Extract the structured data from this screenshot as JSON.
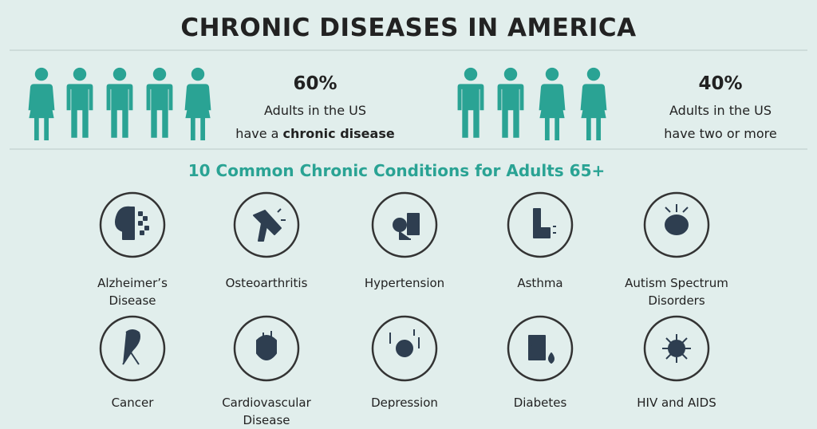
{
  "header": {
    "title": "CHRONIC DISEASES IN AMERICA"
  },
  "stats": [
    {
      "figure": "60%",
      "line1": "Adults in the US",
      "line2": "have a ",
      "line2_bold": "chronic disease"
    },
    {
      "figure": "40%",
      "line1": "Adults in the US",
      "line2": "have two or more"
    }
  ],
  "section": {
    "title": "10 Common Chronic Conditions for Adults 65+"
  },
  "conditions": [
    {
      "label": [
        "Alzheimer’s",
        "Disease"
      ]
    },
    {
      "label": [
        "Osteoarthritis"
      ]
    },
    {
      "label": [
        "Hypertension"
      ]
    },
    {
      "label": [
        "Asthma"
      ]
    },
    {
      "label": [
        "Autism Spectrum",
        "Disorders"
      ]
    },
    {
      "label": [
        "Cancer"
      ]
    },
    {
      "label": [
        "Cardiovascular",
        "Disease"
      ]
    },
    {
      "label": [
        "Depression"
      ]
    },
    {
      "label": [
        "Diabetes"
      ]
    },
    {
      "label": [
        "HIV and AIDS"
      ]
    }
  ]
}
